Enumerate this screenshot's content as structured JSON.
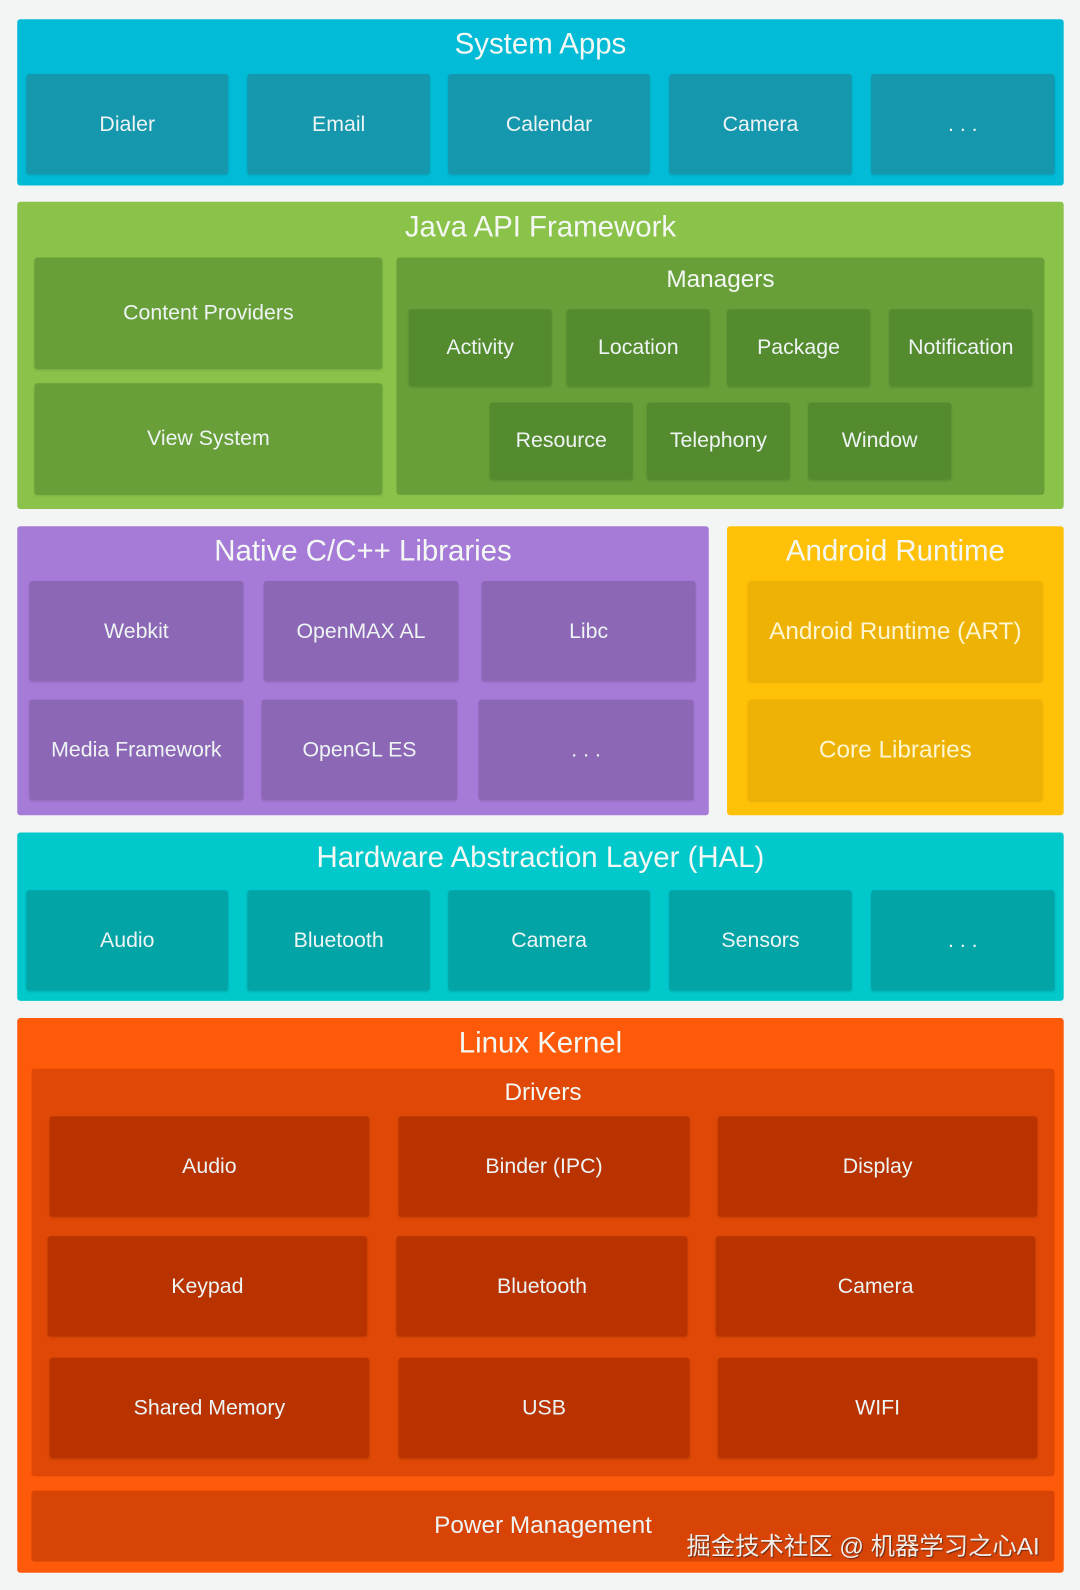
{
  "colors": {
    "system_apps": "#02bbd6",
    "system_apps_box": "#1597ad",
    "java": "#8bc34a",
    "java_inner": "#689f38",
    "java_box": "#558b2f",
    "native": "#a67bd8",
    "native_box": "#8c67b5",
    "runtime": "#ffc107",
    "runtime_box": "#edb204",
    "hal": "#00c8cb",
    "hal_box": "#02a4a6",
    "linux": "#ff5a0a",
    "linux_inner": "#df4806",
    "linux_box": "#b83300"
  },
  "system_apps": {
    "title": "System Apps",
    "items": [
      "Dialer",
      "Email",
      "Calendar",
      "Camera",
      ". . ."
    ]
  },
  "java_api": {
    "title": "Java API Framework",
    "content_providers": "Content Providers",
    "view_system": "View System",
    "managers": {
      "title": "Managers",
      "row1": [
        "Activity",
        "Location",
        "Package",
        "Notification"
      ],
      "row2": [
        "Resource",
        "Telephony",
        "Window"
      ]
    }
  },
  "native": {
    "title": "Native C/C++ Libraries",
    "items": [
      "Webkit",
      "OpenMAX AL",
      "Libc",
      "Media Framework",
      "OpenGL ES",
      ". . ."
    ]
  },
  "runtime": {
    "title": "Android Runtime",
    "items": [
      "Android Runtime (ART)",
      "Core Libraries"
    ]
  },
  "hal": {
    "title": "Hardware Abstraction Layer (HAL)",
    "items": [
      "Audio",
      "Bluetooth",
      "Camera",
      "Sensors",
      ". . ."
    ]
  },
  "linux": {
    "title": "Linux Kernel",
    "drivers": {
      "title": "Drivers",
      "items": [
        "Audio",
        "Binder (IPC)",
        "Display",
        "Keypad",
        "Bluetooth",
        "Camera",
        "Shared Memory",
        "USB",
        "WIFI"
      ]
    },
    "power": "Power Management"
  },
  "watermark": "掘金技术社区 @ 机器学习之心AI"
}
